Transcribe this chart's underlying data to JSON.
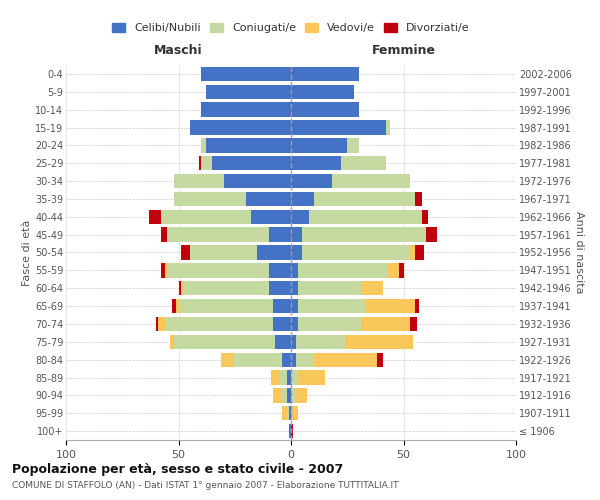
{
  "age_groups": [
    "100+",
    "95-99",
    "90-94",
    "85-89",
    "80-84",
    "75-79",
    "70-74",
    "65-69",
    "60-64",
    "55-59",
    "50-54",
    "45-49",
    "40-44",
    "35-39",
    "30-34",
    "25-29",
    "20-24",
    "15-19",
    "10-14",
    "5-9",
    "0-4"
  ],
  "birth_years": [
    "≤ 1906",
    "1907-1911",
    "1912-1916",
    "1917-1921",
    "1922-1926",
    "1927-1931",
    "1932-1936",
    "1937-1941",
    "1942-1946",
    "1947-1951",
    "1952-1956",
    "1957-1961",
    "1962-1966",
    "1967-1971",
    "1972-1976",
    "1977-1981",
    "1982-1986",
    "1987-1991",
    "1992-1996",
    "1997-2001",
    "2002-2006"
  ],
  "colors": {
    "celibi": "#4472C4",
    "coniugati": "#C5D9A0",
    "vedovi": "#FAC85A",
    "divorziati": "#C0000C"
  },
  "maschi": {
    "celibi": [
      1,
      1,
      2,
      2,
      4,
      7,
      8,
      8,
      10,
      10,
      15,
      10,
      18,
      20,
      30,
      35,
      38,
      45,
      40,
      38,
      40
    ],
    "coniugati": [
      0,
      1,
      2,
      3,
      22,
      45,
      48,
      42,
      38,
      45,
      30,
      45,
      40,
      32,
      22,
      5,
      2,
      0,
      0,
      0,
      0
    ],
    "vedovi": [
      0,
      2,
      4,
      4,
      5,
      2,
      3,
      1,
      1,
      1,
      0,
      0,
      0,
      0,
      0,
      0,
      0,
      0,
      0,
      0,
      0
    ],
    "divorziati": [
      0,
      0,
      0,
      0,
      0,
      0,
      1,
      2,
      1,
      2,
      4,
      3,
      5,
      0,
      0,
      1,
      0,
      0,
      0,
      0,
      0
    ]
  },
  "femmine": {
    "celibi": [
      0,
      0,
      0,
      0,
      2,
      2,
      3,
      3,
      3,
      3,
      5,
      5,
      8,
      10,
      18,
      22,
      25,
      42,
      30,
      28,
      30
    ],
    "coniugati": [
      0,
      0,
      2,
      3,
      8,
      22,
      28,
      30,
      28,
      40,
      48,
      55,
      50,
      45,
      35,
      20,
      5,
      2,
      0,
      0,
      0
    ],
    "vedovi": [
      0,
      3,
      5,
      12,
      28,
      30,
      22,
      22,
      10,
      5,
      2,
      0,
      0,
      0,
      0,
      0,
      0,
      0,
      0,
      0,
      0
    ],
    "divorziati": [
      1,
      0,
      0,
      0,
      3,
      0,
      3,
      2,
      0,
      2,
      4,
      5,
      3,
      3,
      0,
      0,
      0,
      0,
      0,
      0,
      0
    ]
  },
  "xlim": 100,
  "title": "Popolazione per età, sesso e stato civile - 2007",
  "subtitle": "COMUNE DI STAFFOLO (AN) - Dati ISTAT 1° gennaio 2007 - Elaborazione TUTTITALIA.IT",
  "ylabel_left": "Fasce di età",
  "ylabel_right": "Anni di nascita",
  "legend_labels": [
    "Celibi/Nubili",
    "Coniugati/e",
    "Vedovi/e",
    "Divorziati/e"
  ],
  "maschi_label": "Maschi",
  "femmine_label": "Femmine",
  "bg_color": "#FFFFFF",
  "bar_height": 0.8
}
